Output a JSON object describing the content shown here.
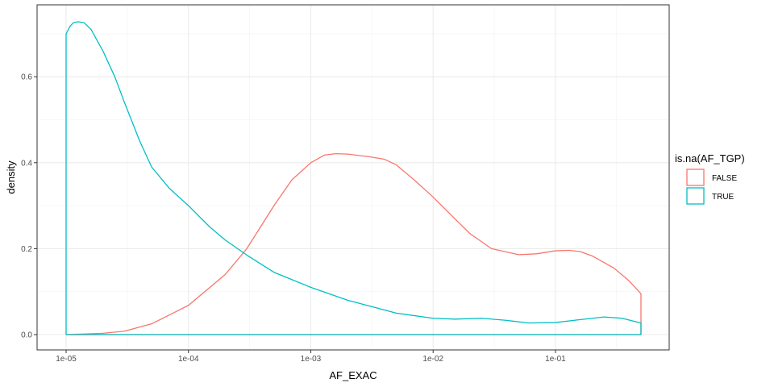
{
  "chart_data": {
    "type": "area",
    "xlabel": "AF_EXAC",
    "ylabel": "density",
    "x_scale": "log10",
    "xlim": [
      1e-05,
      0.5
    ],
    "ylim": [
      0,
      0.73
    ],
    "x_ticks": [
      {
        "value": 1e-05,
        "label": "1e-05"
      },
      {
        "value": 0.0001,
        "label": "1e-04"
      },
      {
        "value": 0.001,
        "label": "1e-03"
      },
      {
        "value": 0.01,
        "label": "1e-02"
      },
      {
        "value": 0.1,
        "label": "1e-01"
      }
    ],
    "y_ticks": [
      {
        "value": 0.0,
        "label": "0.0"
      },
      {
        "value": 0.2,
        "label": "0.2"
      },
      {
        "value": 0.4,
        "label": "0.4"
      },
      {
        "value": 0.6,
        "label": "0.6"
      }
    ],
    "grid": true,
    "legend": {
      "title": "is.na(AF_TGP)",
      "position": "right"
    },
    "series": [
      {
        "name": "FALSE",
        "color": "#F8766D",
        "x": [
          1e-05,
          2e-05,
          3e-05,
          5e-05,
          0.0001,
          0.0002,
          0.0003,
          0.0005,
          0.0007,
          0.001,
          0.0013,
          0.0016,
          0.002,
          0.003,
          0.004,
          0.005,
          0.007,
          0.01,
          0.015,
          0.02,
          0.03,
          0.05,
          0.07,
          0.1,
          0.13,
          0.16,
          0.2,
          0.3,
          0.4,
          0.5
        ],
        "y": [
          0.0,
          0.003,
          0.008,
          0.025,
          0.068,
          0.14,
          0.2,
          0.3,
          0.36,
          0.4,
          0.418,
          0.421,
          0.42,
          0.414,
          0.408,
          0.395,
          0.36,
          0.32,
          0.27,
          0.235,
          0.2,
          0.186,
          0.188,
          0.195,
          0.196,
          0.193,
          0.183,
          0.155,
          0.125,
          0.095
        ]
      },
      {
        "name": "TRUE",
        "color": "#00BFC4",
        "x": [
          1e-05,
          1.08e-05,
          1.15e-05,
          1.25e-05,
          1.4e-05,
          1.6e-05,
          2e-05,
          2.5e-05,
          3e-05,
          4e-05,
          5e-05,
          7e-05,
          0.0001,
          0.00015,
          0.0002,
          0.0003,
          0.0005,
          0.001,
          0.002,
          0.005,
          0.01,
          0.015,
          0.025,
          0.04,
          0.06,
          0.1,
          0.15,
          0.25,
          0.35,
          0.5
        ],
        "y": [
          0.7,
          0.718,
          0.726,
          0.728,
          0.726,
          0.71,
          0.66,
          0.6,
          0.54,
          0.45,
          0.39,
          0.34,
          0.3,
          0.25,
          0.22,
          0.185,
          0.145,
          0.11,
          0.08,
          0.05,
          0.038,
          0.036,
          0.038,
          0.033,
          0.027,
          0.028,
          0.034,
          0.041,
          0.038,
          0.027
        ]
      }
    ]
  }
}
